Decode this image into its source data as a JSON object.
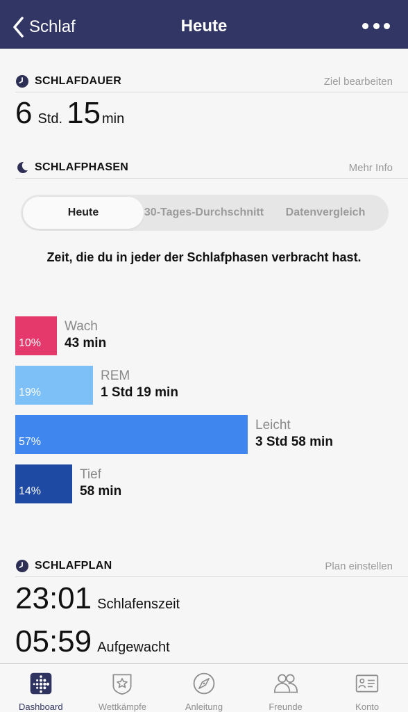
{
  "header": {
    "back_label": "Schlaf",
    "title": "Heute"
  },
  "duration_section": {
    "title": "SCHLAFDAUER",
    "link": "Ziel bearbeiten",
    "hours": "6",
    "hours_unit": "Std.",
    "minutes": "15",
    "minutes_unit": "min"
  },
  "phases_section": {
    "title": "SCHLAFPHASEN",
    "link": "Mehr Info",
    "tabs": [
      {
        "label": "Heute",
        "active": true
      },
      {
        "label": "30-Tages-Durchschnitt",
        "active": false
      },
      {
        "label": "Datenvergleich",
        "active": false
      }
    ],
    "caption": "Zeit, die du in jeder der Schlafphasen verbracht hast.",
    "stages": [
      {
        "name": "Wach",
        "percent": 10,
        "percent_label": "10%",
        "time": "43 min",
        "color": "#e5396b"
      },
      {
        "name": "REM",
        "percent": 19,
        "percent_label": "19%",
        "time": "1 Std 19 min",
        "color": "#7dbff7"
      },
      {
        "name": "Leicht",
        "percent": 57,
        "percent_label": "57%",
        "time": "3 Std 58 min",
        "color": "#3f86ee"
      },
      {
        "name": "Tief",
        "percent": 14,
        "percent_label": "14%",
        "time": "58 min",
        "color": "#1e4aa3"
      }
    ]
  },
  "plan_section": {
    "title": "SCHLAFPLAN",
    "link": "Plan einstellen",
    "bedtime": "23:01",
    "bedtime_label": "Schlafenszeit",
    "wake": "05:59",
    "wake_label": "Aufgewacht"
  },
  "tabbar": {
    "items": [
      {
        "label": "Dashboard",
        "icon": "dashboard-icon",
        "active": true
      },
      {
        "label": "Wettkämpfe",
        "icon": "challenges-badge-icon",
        "active": false
      },
      {
        "label": "Anleitung",
        "icon": "compass-icon",
        "active": false
      },
      {
        "label": "Freunde",
        "icon": "friends-icon",
        "active": false
      },
      {
        "label": "Konto",
        "icon": "account-card-icon",
        "active": false
      }
    ]
  },
  "colors": {
    "navbar": "#323665",
    "accent": "#333765"
  }
}
